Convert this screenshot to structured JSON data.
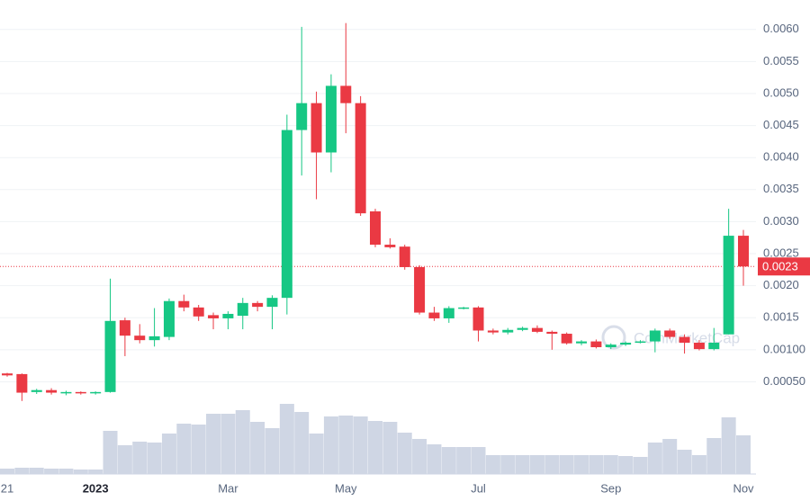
{
  "chart_data": {
    "type": "candlestick",
    "categories": [
      "21",
      null,
      null,
      null,
      null,
      null,
      "2023",
      null,
      null,
      null,
      null,
      null,
      null,
      null,
      null,
      "Mar",
      null,
      null,
      null,
      null,
      null,
      null,
      null,
      "May",
      null,
      null,
      null,
      null,
      null,
      null,
      null,
      null,
      "Jul",
      null,
      null,
      null,
      null,
      null,
      null,
      null,
      null,
      "Sep",
      null,
      null,
      null,
      null,
      null,
      null,
      null,
      null,
      "Nov"
    ],
    "open": [
      0.00063,
      0.00062,
      0.00034,
      0.00037,
      0.00032,
      0.00034,
      0.00032,
      0.00034,
      0.00146,
      0.00122,
      0.00115,
      0.0012,
      0.00176,
      0.00166,
      0.00154,
      0.00149,
      0.00153,
      0.00173,
      0.00167,
      0.00181,
      0.00443,
      0.00485,
      0.00408,
      0.00512,
      0.00485,
      0.00316,
      0.00264,
      0.00261,
      0.00229,
      0.00158,
      0.00149,
      0.00165,
      0.00166,
      0.0013,
      0.00127,
      0.00131,
      0.00134,
      0.00128,
      0.00125,
      0.0011,
      0.00113,
      0.00104,
      0.00108,
      0.00111,
      0.00113,
      0.0013,
      0.0012,
      0.00111,
      0.00101,
      0.00124,
      0.00278
    ],
    "high": [
      0.00064,
      0.00063,
      0.00039,
      0.0004,
      0.00036,
      0.00035,
      0.00035,
      0.00211,
      0.0015,
      0.0014,
      0.00165,
      0.0018,
      0.00186,
      0.0017,
      0.00158,
      0.0016,
      0.00181,
      0.00176,
      0.00185,
      0.00467,
      0.00604,
      0.00503,
      0.0053,
      0.0061,
      0.00496,
      0.0032,
      0.00274,
      0.00264,
      0.00232,
      0.00167,
      0.00168,
      0.00167,
      0.00168,
      0.00133,
      0.00134,
      0.00136,
      0.00138,
      0.0013,
      0.00127,
      0.00115,
      0.00116,
      0.0011,
      0.00113,
      0.00115,
      0.00133,
      0.00133,
      0.00124,
      0.00115,
      0.00134,
      0.0032,
      0.00287
    ],
    "low": [
      0.00058,
      0.0002,
      0.00031,
      0.0003,
      0.00029,
      0.0003,
      0.0003,
      0.00033,
      0.0009,
      0.0011,
      0.00105,
      0.00115,
      0.0016,
      0.00145,
      0.00132,
      0.00132,
      0.00132,
      0.0016,
      0.00132,
      0.00155,
      0.00372,
      0.00335,
      0.00377,
      0.00438,
      0.00309,
      0.0026,
      0.00258,
      0.00225,
      0.00155,
      0.00145,
      0.00142,
      0.00163,
      0.00113,
      0.00124,
      0.00124,
      0.00129,
      0.00126,
      0.001,
      0.00108,
      0.00107,
      0.00102,
      0.00101,
      0.00106,
      0.0011,
      0.00096,
      0.00117,
      0.00094,
      0.00099,
      0.00099,
      0.00124,
      0.002
    ],
    "close": [
      0.0006,
      0.00033,
      0.00037,
      0.00033,
      0.00034,
      0.00032,
      0.00034,
      0.00145,
      0.00122,
      0.00115,
      0.00121,
      0.00176,
      0.00166,
      0.00152,
      0.00149,
      0.00156,
      0.00173,
      0.00167,
      0.00181,
      0.00443,
      0.00485,
      0.00408,
      0.00512,
      0.00485,
      0.00313,
      0.00264,
      0.0026,
      0.00229,
      0.00158,
      0.00149,
      0.00165,
      0.00166,
      0.0013,
      0.00127,
      0.00131,
      0.00134,
      0.00128,
      0.00125,
      0.0011,
      0.00113,
      0.00104,
      0.00108,
      0.00111,
      0.00113,
      0.0013,
      0.0012,
      0.00111,
      0.00101,
      0.00111,
      0.00278,
      0.0023
    ],
    "volume": [
      6,
      7,
      7,
      6,
      6,
      5,
      5,
      48,
      32,
      36,
      35,
      45,
      56,
      55,
      67,
      67,
      71,
      58,
      51,
      78,
      69,
      45,
      64,
      65,
      64,
      59,
      58,
      46,
      39,
      33,
      30,
      30,
      30,
      21,
      21,
      21,
      21,
      21,
      21,
      21,
      21,
      21,
      20,
      19,
      35,
      39,
      27,
      21,
      40,
      63,
      43
    ],
    "up_color": "#16c784",
    "down_color": "#ea3943",
    "volume_color": "#cfd6e4",
    "ylim": [
      -0.00094,
      0.00646
    ],
    "yticks": [
      {
        "value": 0.006,
        "label": "0.0060"
      },
      0.0055,
      {
        "value": 0.005,
        "label": "0.0050"
      },
      0.0045,
      {
        "value": 0.004,
        "label": "0.0040"
      },
      0.0035,
      {
        "value": 0.003,
        "label": "0.0030"
      },
      0.0025,
      {
        "value": 0.002,
        "label": "0.0020"
      },
      0.0015,
      {
        "value": 0.001,
        "label": "0.00100"
      },
      {
        "value": 0.0005,
        "label": "0.00050"
      }
    ],
    "grid": true,
    "current_price": 0.0023,
    "watermark": "CoinMarketCap"
  }
}
